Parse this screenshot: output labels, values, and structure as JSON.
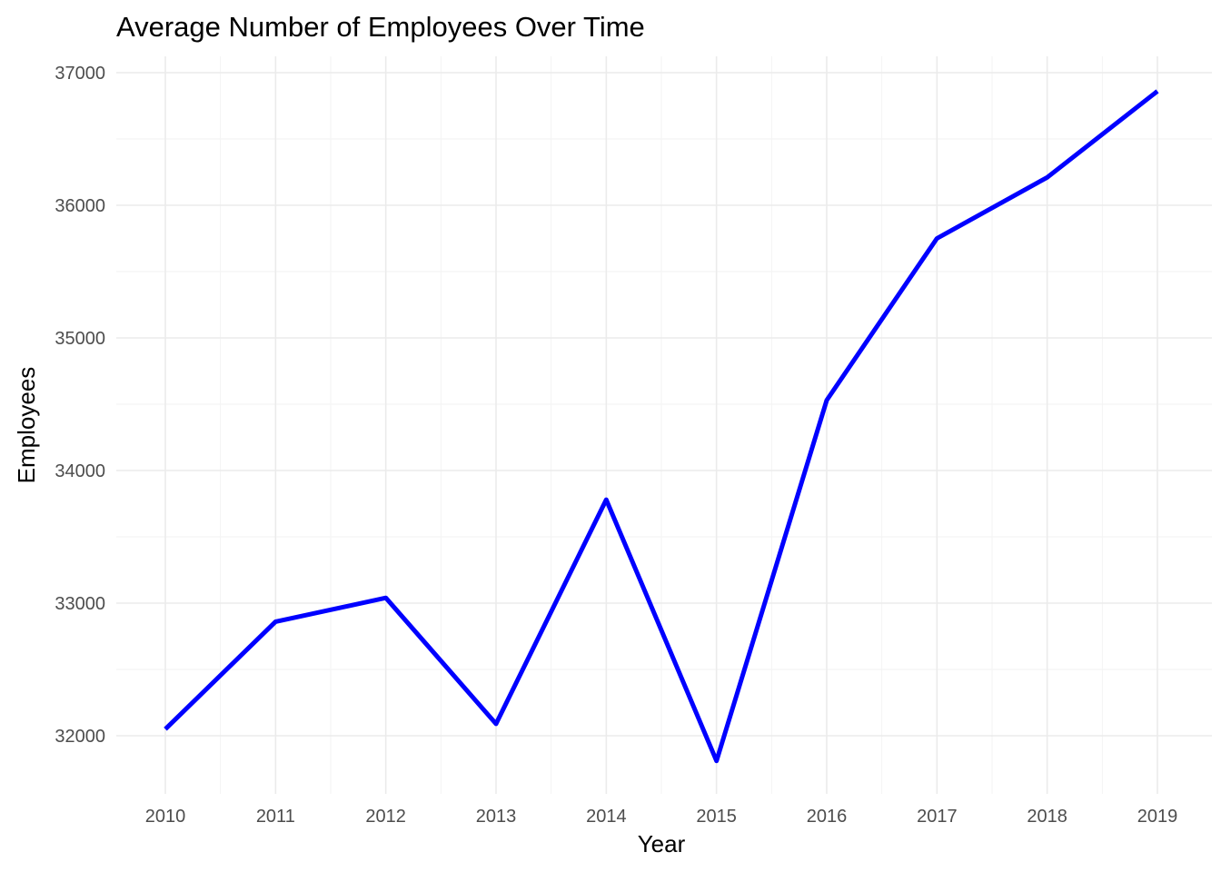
{
  "chart_data": {
    "type": "line",
    "title": "Average Number of Employees Over Time",
    "xlabel": "Year",
    "ylabel": "Employees",
    "x": [
      2010,
      2011,
      2012,
      2013,
      2014,
      2015,
      2016,
      2017,
      2018,
      2019
    ],
    "series": [
      {
        "values": [
          32050,
          32860,
          33040,
          32090,
          33780,
          31810,
          34530,
          35750,
          36210,
          36860
        ],
        "color": "#0000ff"
      }
    ],
    "xlim": [
      2010,
      2019
    ],
    "ylim": [
      31810,
      36860
    ],
    "x_ticks": [
      "2010",
      "2011",
      "2012",
      "2013",
      "2014",
      "2015",
      "2016",
      "2017",
      "2018",
      "2019"
    ],
    "y_ticks": [
      "32000",
      "33000",
      "34000",
      "35000",
      "36000",
      "37000"
    ],
    "grid": true,
    "legend": "none"
  }
}
